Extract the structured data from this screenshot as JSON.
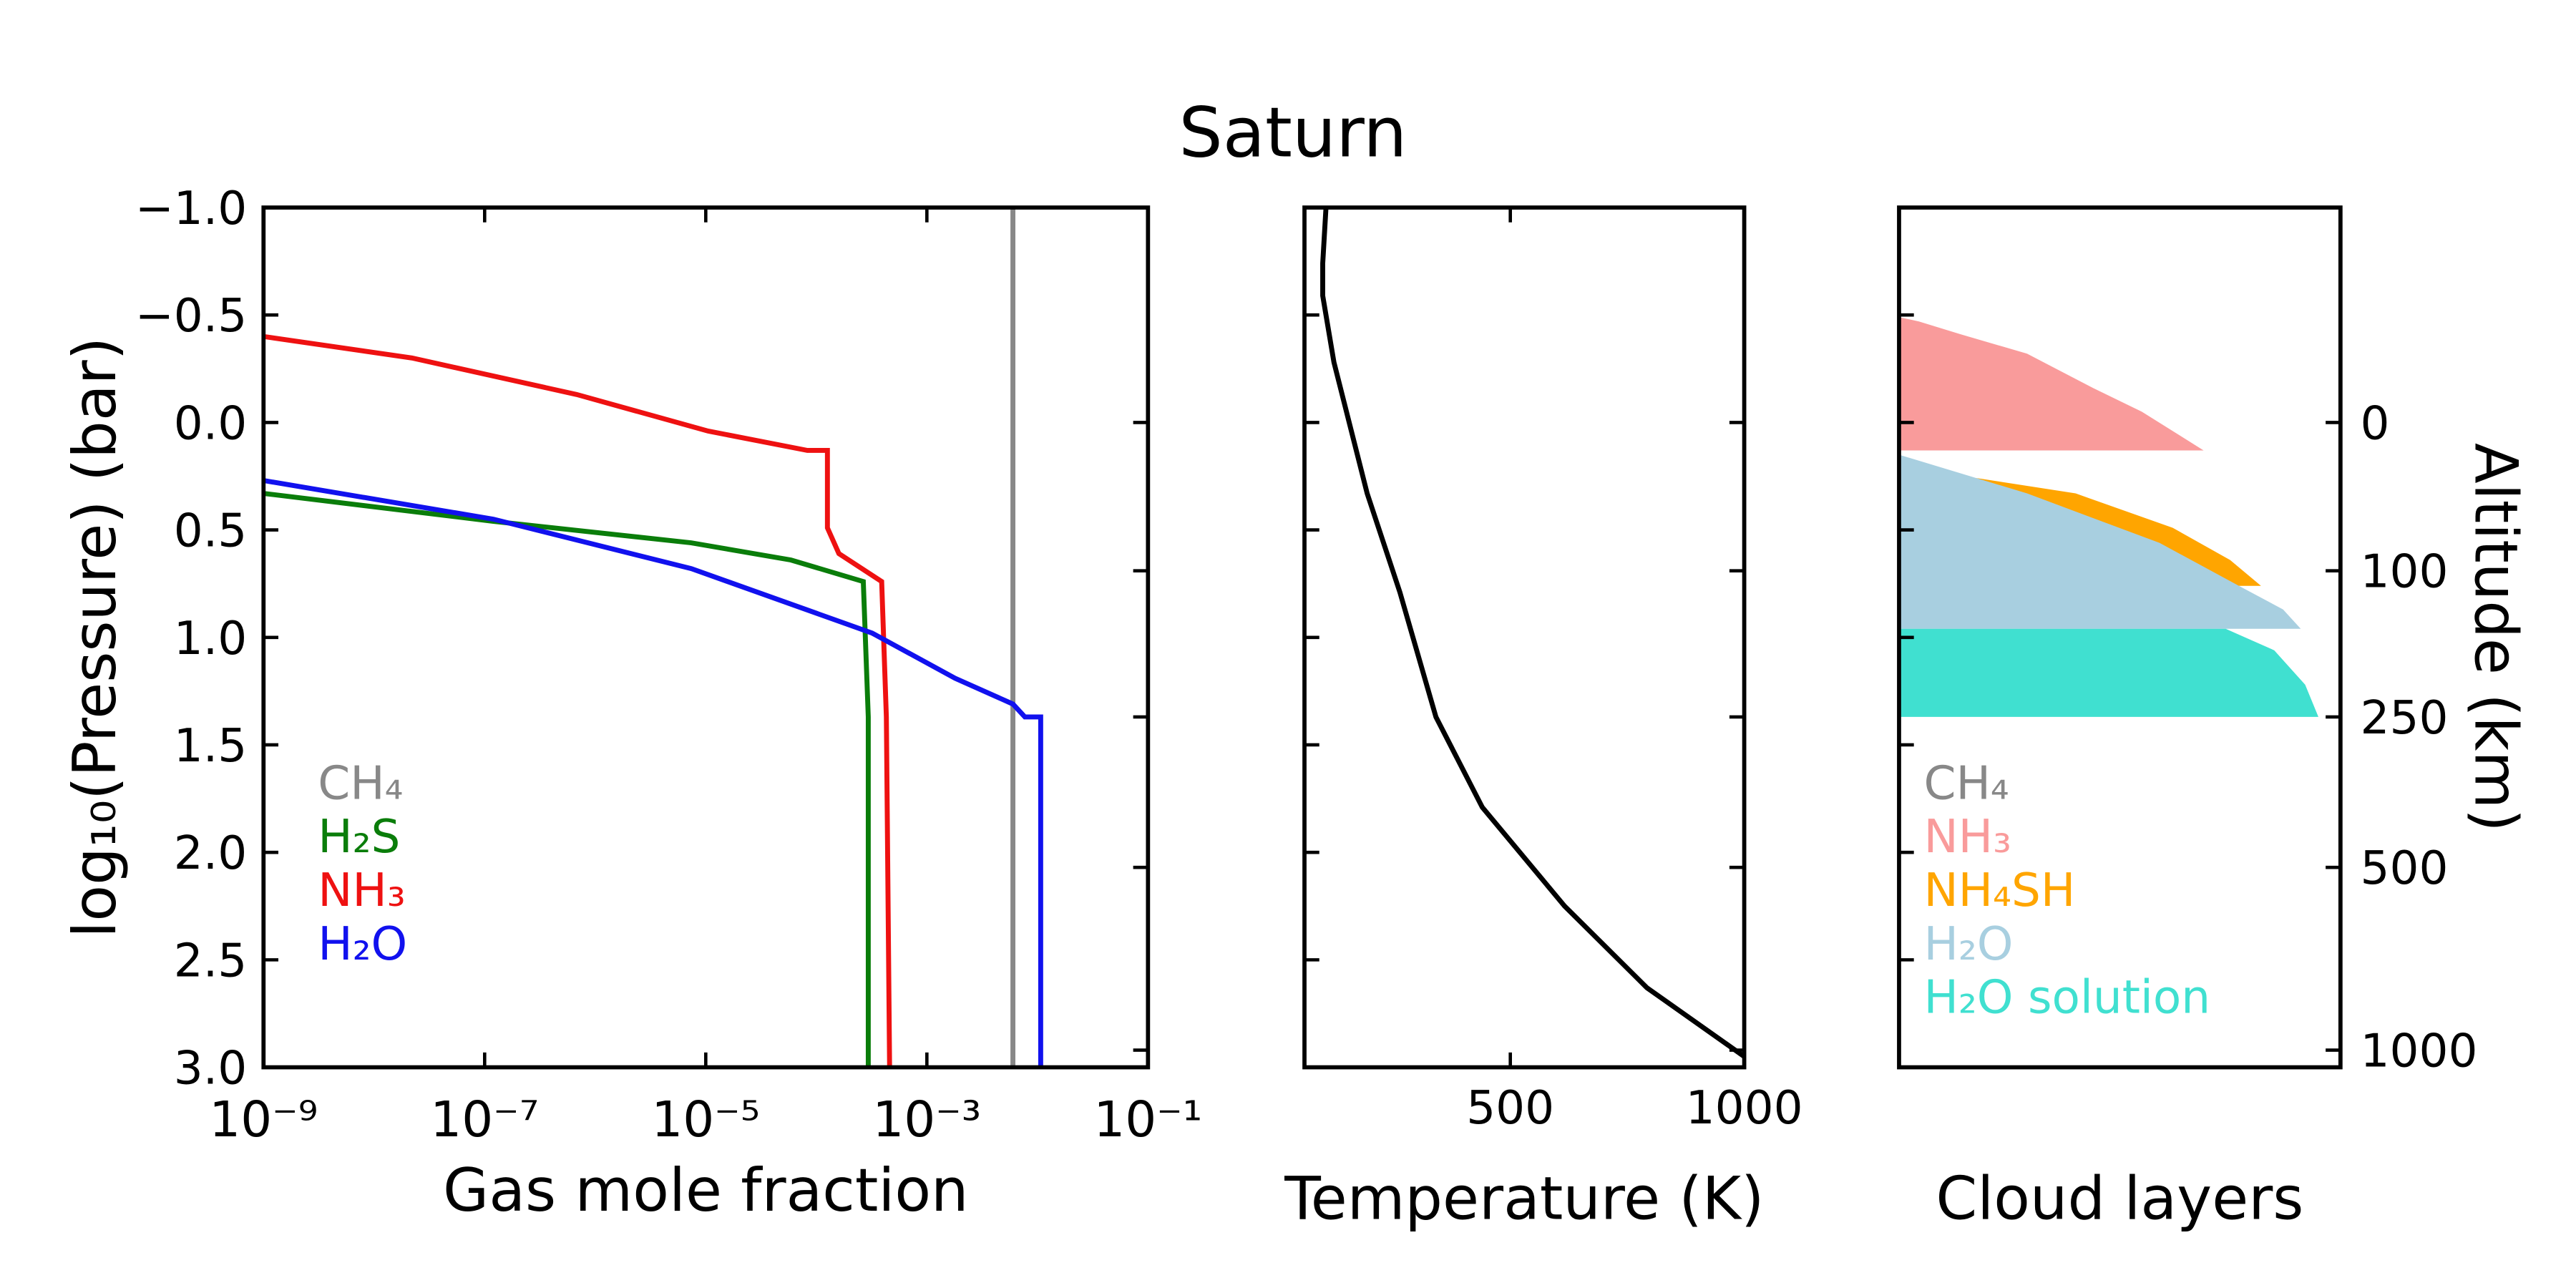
{
  "title": "Saturn",
  "chart_data": [
    {
      "type": "line",
      "xlabel": "Gas mole fraction",
      "ylabel": "log₁₀(Pressure) (bar)",
      "xscale": "log",
      "xlim": [
        1e-09,
        0.1
      ],
      "xticks": [
        {
          "value": 1e-09,
          "label": "10⁻⁹"
        },
        {
          "value": 1e-07,
          "label": "10⁻⁷"
        },
        {
          "value": 1e-05,
          "label": "10⁻⁵"
        },
        {
          "value": 0.001,
          "label": "10⁻³"
        },
        {
          "value": 0.1,
          "label": "10⁻¹"
        }
      ],
      "ylim": [
        -1.0,
        3.0
      ],
      "y_inverted": true,
      "yticks": [
        {
          "value": -1.0,
          "label": "−1.0"
        },
        {
          "value": -0.5,
          "label": "−0.5"
        },
        {
          "value": 0.0,
          "label": "0.0"
        },
        0.5,
        {
          "value": 1.0,
          "label": "1.0"
        },
        1.5,
        {
          "value": 2.0,
          "label": "2.0"
        },
        2.5,
        {
          "value": 3.0,
          "label": "3.0"
        }
      ],
      "series": [
        {
          "name": "CH₄",
          "color": "#888888",
          "x": [
            0.006,
            0.006
          ],
          "y": [
            -1.0,
            3.0
          ]
        },
        {
          "name": "H₂S",
          "color": "#0a7d0a",
          "x": [
            1e-09,
            1.2e-07,
            7.4e-06,
            5.9e-05,
            0.000266,
            0.000295,
            0.000295
          ],
          "y": [
            0.33,
            0.46,
            0.56,
            0.64,
            0.74,
            1.37,
            3.0
          ]
        },
        {
          "name": "NH₃",
          "color": "#ee1111",
          "x": [
            1e-09,
            2.2e-08,
            6.8e-07,
            1.05e-05,
            8.3e-05,
            0.000126,
            0.000126,
            0.00016,
            0.00039,
            0.00043,
            0.00046
          ],
          "y": [
            -0.4,
            -0.3,
            -0.13,
            0.04,
            0.13,
            0.13,
            0.49,
            0.61,
            0.74,
            1.37,
            3.0
          ]
        },
        {
          "name": "H₂O",
          "color": "#1111ee",
          "x": [
            1e-09,
            1.2e-07,
            7.4e-06,
            0.00032,
            0.0018,
            0.006,
            0.0077,
            0.0107,
            0.0107
          ],
          "y": [
            0.27,
            0.45,
            0.68,
            0.98,
            1.19,
            1.31,
            1.37,
            1.37,
            3.0
          ]
        }
      ]
    },
    {
      "type": "line",
      "xlabel": "Temperature (K)",
      "xlim": [
        60,
        1000
      ],
      "xticks": [
        500,
        1000
      ],
      "ylim": [
        -1.0,
        3.0
      ],
      "y_inverted": true,
      "series": [
        {
          "color": "#000000",
          "x": [
            106,
            99,
            99,
            123,
            194,
            264,
            341,
            440,
            616,
            792,
            1000
          ],
          "y": [
            -1.0,
            -0.74,
            -0.59,
            -0.28,
            0.33,
            0.79,
            1.37,
            1.79,
            2.25,
            2.63,
            2.95
          ]
        }
      ]
    },
    {
      "type": "area",
      "xlabel": "Cloud layers",
      "y2label": "Altitude (km)",
      "xlim": [
        0,
        1
      ],
      "ylim": [
        -1.0,
        3.0
      ],
      "y_inverted": true,
      "y2ticks": [
        0,
        100,
        250,
        500,
        1000
      ],
      "y2tick_pressures": [
        0.0,
        0.69,
        1.37,
        2.07,
        2.92
      ],
      "series": [
        {
          "name": "CH₄",
          "color": "#888888",
          "x": [],
          "y": []
        },
        {
          "name": "NH₃",
          "color": "#f99b9b",
          "x": [
            0,
            0.045,
            0.14,
            0.29,
            0.44,
            0.55,
            0.69,
            0
          ],
          "y": [
            -0.49,
            -0.47,
            -0.41,
            -0.32,
            -0.16,
            -0.05,
            0.13,
            0.13
          ]
        },
        {
          "name": "NH₄SH",
          "color": "#ffa500",
          "x": [
            0,
            0.18,
            0.4,
            0.62,
            0.75,
            0.82,
            0
          ],
          "y": [
            0.22,
            0.26,
            0.33,
            0.49,
            0.64,
            0.76,
            0.76
          ]
        },
        {
          "name": "H₂O",
          "color": "#a8cfe0",
          "x": [
            0,
            0.29,
            0.59,
            0.77,
            0.87,
            0.91,
            0
          ],
          "y": [
            0.15,
            0.33,
            0.56,
            0.76,
            0.87,
            0.96,
            0.96
          ]
        },
        {
          "name": "H₂O solution",
          "color": "#40e0d0",
          "x": [
            0,
            0.74,
            0.85,
            0.92,
            0.95,
            0
          ],
          "y": [
            0.96,
            0.96,
            1.06,
            1.22,
            1.37,
            1.37
          ]
        }
      ]
    }
  ]
}
